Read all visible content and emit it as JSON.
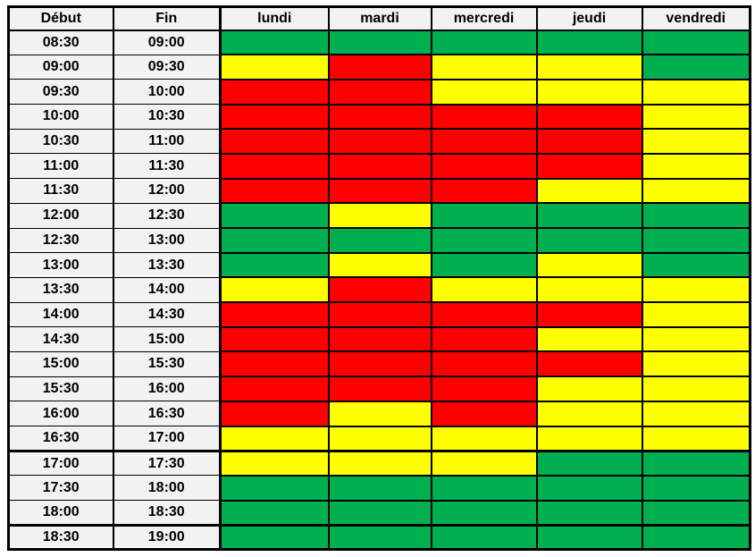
{
  "colors": {
    "green": "#00B050",
    "yellow": "#FFFF00",
    "red": "#FF0000",
    "time_cell_bg": "#F2F2F2",
    "grid_line": "#000000",
    "page_bg": "#FFFFFF"
  },
  "table": {
    "headers": [
      "Début",
      "Fin",
      "lundi",
      "mardi",
      "mercredi",
      "jeudi",
      "vendredi"
    ],
    "thick_separators_before": [
      "17:00",
      "18:30"
    ],
    "rows": [
      {
        "debut": "08:30",
        "fin": "09:00",
        "slots": [
          "green",
          "green",
          "green",
          "green",
          "green"
        ]
      },
      {
        "debut": "09:00",
        "fin": "09:30",
        "slots": [
          "yellow",
          "red",
          "yellow",
          "yellow",
          "green"
        ]
      },
      {
        "debut": "09:30",
        "fin": "10:00",
        "slots": [
          "red",
          "red",
          "yellow",
          "yellow",
          "yellow"
        ]
      },
      {
        "debut": "10:00",
        "fin": "10:30",
        "slots": [
          "red",
          "red",
          "red",
          "red",
          "yellow"
        ]
      },
      {
        "debut": "10:30",
        "fin": "11:00",
        "slots": [
          "red",
          "red",
          "red",
          "red",
          "yellow"
        ]
      },
      {
        "debut": "11:00",
        "fin": "11:30",
        "slots": [
          "red",
          "red",
          "red",
          "red",
          "yellow"
        ]
      },
      {
        "debut": "11:30",
        "fin": "12:00",
        "slots": [
          "red",
          "red",
          "red",
          "yellow",
          "yellow"
        ]
      },
      {
        "debut": "12:00",
        "fin": "12:30",
        "slots": [
          "green",
          "yellow",
          "green",
          "green",
          "green"
        ]
      },
      {
        "debut": "12:30",
        "fin": "13:00",
        "slots": [
          "green",
          "green",
          "green",
          "green",
          "green"
        ]
      },
      {
        "debut": "13:00",
        "fin": "13:30",
        "slots": [
          "green",
          "yellow",
          "green",
          "yellow",
          "green"
        ]
      },
      {
        "debut": "13:30",
        "fin": "14:00",
        "slots": [
          "yellow",
          "red",
          "yellow",
          "yellow",
          "yellow"
        ]
      },
      {
        "debut": "14:00",
        "fin": "14:30",
        "slots": [
          "red",
          "red",
          "red",
          "red",
          "yellow"
        ]
      },
      {
        "debut": "14:30",
        "fin": "15:00",
        "slots": [
          "red",
          "red",
          "red",
          "yellow",
          "yellow"
        ]
      },
      {
        "debut": "15:00",
        "fin": "15:30",
        "slots": [
          "red",
          "red",
          "red",
          "red",
          "yellow"
        ]
      },
      {
        "debut": "15:30",
        "fin": "16:00",
        "slots": [
          "red",
          "red",
          "red",
          "yellow",
          "yellow"
        ]
      },
      {
        "debut": "16:00",
        "fin": "16:30",
        "slots": [
          "red",
          "yellow",
          "red",
          "yellow",
          "yellow"
        ]
      },
      {
        "debut": "16:30",
        "fin": "17:00",
        "slots": [
          "yellow",
          "yellow",
          "yellow",
          "yellow",
          "yellow"
        ]
      },
      {
        "debut": "17:00",
        "fin": "17:30",
        "slots": [
          "yellow",
          "yellow",
          "yellow",
          "green",
          "green"
        ]
      },
      {
        "debut": "17:30",
        "fin": "18:00",
        "slots": [
          "green",
          "green",
          "green",
          "green",
          "green"
        ]
      },
      {
        "debut": "18:00",
        "fin": "18:30",
        "slots": [
          "green",
          "green",
          "green",
          "green",
          "green"
        ]
      },
      {
        "debut": "18:30",
        "fin": "19:00",
        "slots": [
          "green",
          "green",
          "green",
          "green",
          "green"
        ]
      }
    ]
  }
}
